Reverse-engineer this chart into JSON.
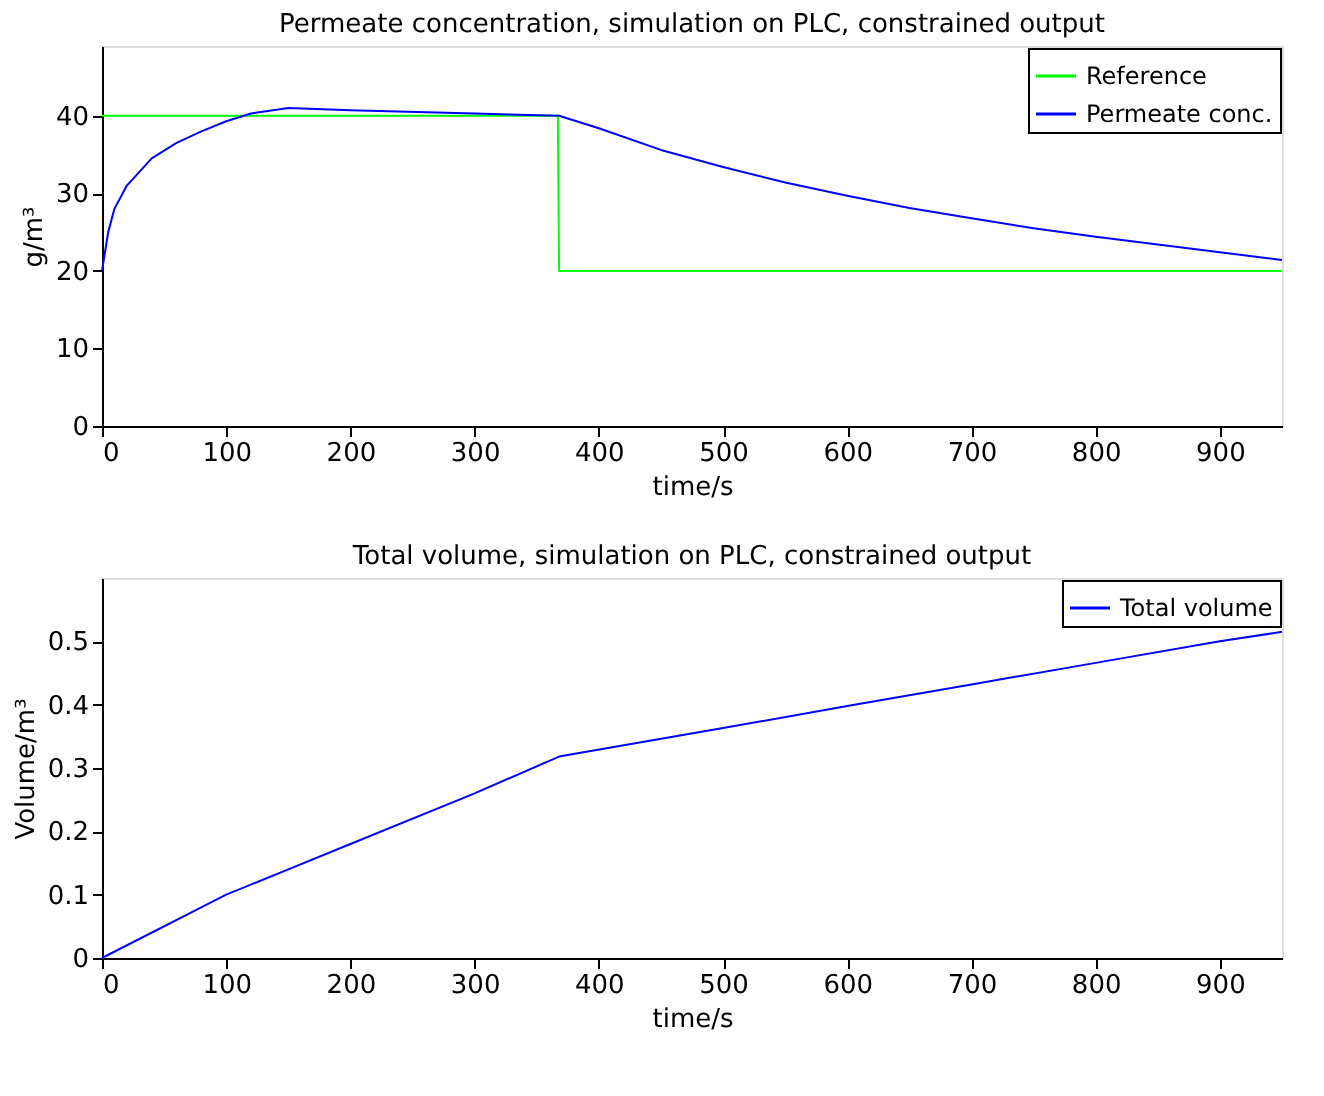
{
  "chart_data": [
    {
      "type": "line",
      "title": "Permeate concentration, simulation on PLC, constrained output",
      "xlabel": "time/s",
      "ylabel": "g/m³",
      "xlim": [
        0,
        950
      ],
      "xticks": [
        0,
        100,
        200,
        300,
        400,
        500,
        600,
        700,
        800,
        900
      ],
      "ylim": [
        0,
        49
      ],
      "yticks": [
        0,
        10,
        20,
        30,
        40
      ],
      "grid": false,
      "legend": "top right",
      "marker": "none",
      "line_style": "solid",
      "series": [
        {
          "name": "Reference",
          "color": "#00ff00",
          "x": [
            0,
            367,
            368,
            950
          ],
          "values": [
            40,
            40,
            20,
            20
          ]
        },
        {
          "name": "Permeate conc.",
          "color": "#0000ff",
          "x": [
            0,
            5,
            10,
            20,
            40,
            60,
            80,
            100,
            120,
            150,
            200,
            300,
            368,
            400,
            450,
            500,
            550,
            600,
            650,
            700,
            750,
            800,
            850,
            900,
            950
          ],
          "values": [
            20,
            25,
            28,
            31,
            34.5,
            36.5,
            38,
            39.3,
            40.3,
            41,
            40.7,
            40.3,
            40,
            38.4,
            35.6,
            33.4,
            31.4,
            29.7,
            28.1,
            26.8,
            25.5,
            24.4,
            23.4,
            22.4,
            21.4
          ]
        }
      ]
    },
    {
      "type": "line",
      "title": "Total volume, simulation on PLC, constrained output",
      "xlabel": "time/s",
      "ylabel": "Volume/m³",
      "xlim": [
        0,
        950
      ],
      "xticks": [
        0,
        100,
        200,
        300,
        400,
        500,
        600,
        700,
        800,
        900
      ],
      "ylim": [
        0,
        0.6
      ],
      "yticks": [
        0,
        0.1,
        0.2,
        0.3,
        0.4,
        0.5
      ],
      "grid": false,
      "legend": "top right",
      "marker": "none",
      "line_style": "solid",
      "series": [
        {
          "name": "Total volume",
          "color": "#0000ff",
          "x": [
            0,
            100,
            150,
            200,
            300,
            368,
            500,
            600,
            700,
            800,
            900,
            950
          ],
          "values": [
            0,
            0.1,
            0.14,
            0.18,
            0.26,
            0.318,
            0.363,
            0.398,
            0.432,
            0.466,
            0.5,
            0.515
          ]
        }
      ]
    }
  ]
}
